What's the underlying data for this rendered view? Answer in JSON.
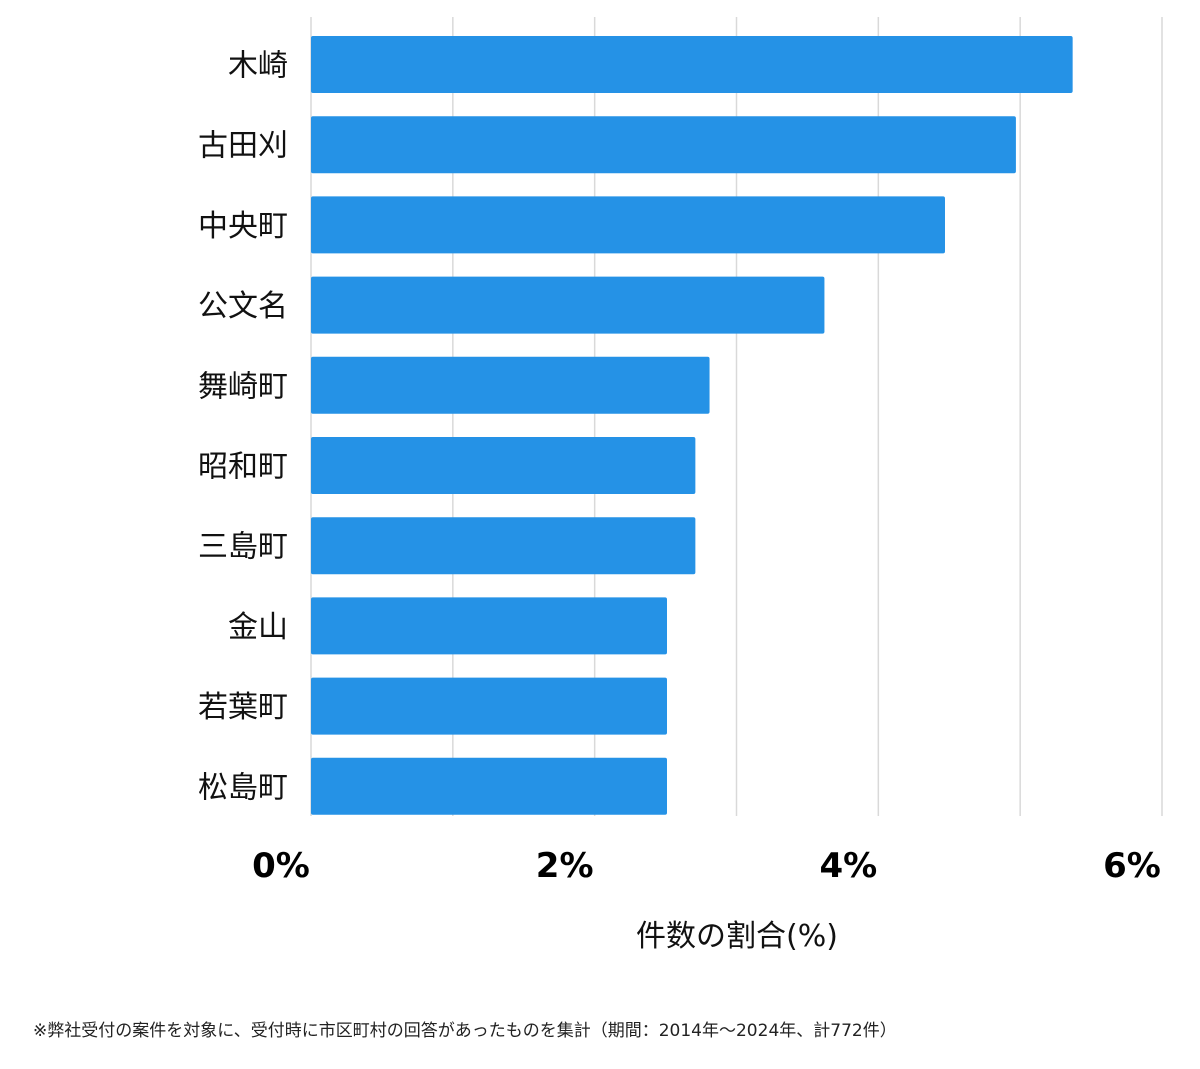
{
  "chart_data": {
    "type": "bar",
    "orientation": "horizontal",
    "categories": [
      "木崎",
      "古田刈",
      "中央町",
      "公文名",
      "舞崎町",
      "昭和町",
      "三島町",
      "金山",
      "若葉町",
      "松島町"
    ],
    "values": [
      5.37,
      4.97,
      4.47,
      3.62,
      2.81,
      2.71,
      2.71,
      2.51,
      2.51,
      2.51
    ],
    "xlim": [
      0,
      6
    ],
    "x_ticks": [
      0,
      2,
      4,
      6
    ],
    "x_tick_labels": [
      "0%",
      "2%",
      "4%",
      "6%"
    ],
    "xlabel": "件数の割合(%)",
    "grid": true,
    "bar_color": "#2592e6",
    "grid_color": "#d9d9d9"
  },
  "footnote": "※弊社受付の案件を対象に、受付時に市区町村の回答があったものを集計（期間：2014年～2024年、計772件）"
}
